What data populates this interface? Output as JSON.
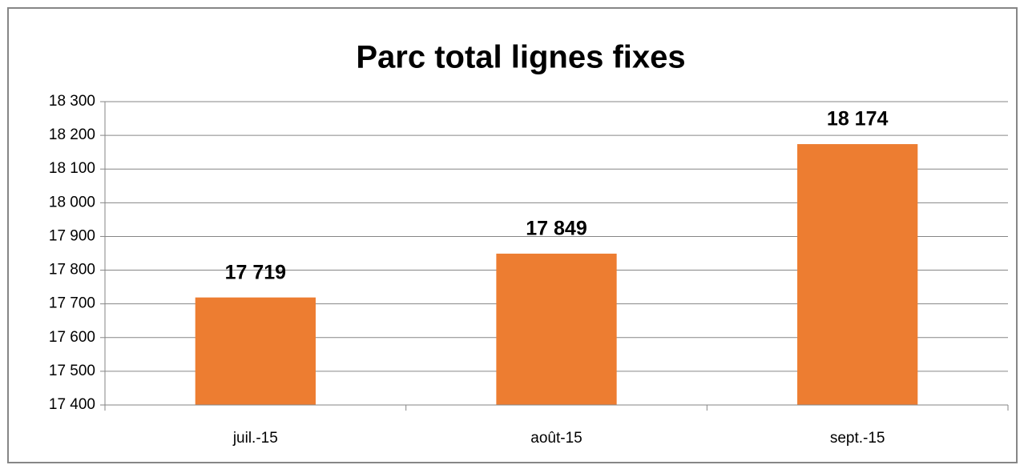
{
  "chart_data": {
    "type": "bar",
    "title": "Parc total lignes fixes",
    "categories": [
      "juil.-15",
      "août-15",
      "sept.-15"
    ],
    "values": [
      17719,
      17849,
      18174
    ],
    "value_labels": [
      "17 719",
      "17 849",
      "18 174"
    ],
    "color": "#ed7d31",
    "ylim": [
      17400,
      18300
    ],
    "yticks": [
      {
        "value": 17400,
        "label": "17 400"
      },
      {
        "value": 17500,
        "label": "17 500"
      },
      {
        "value": 17600,
        "label": "17 600"
      },
      {
        "value": 17700,
        "label": "17 700"
      },
      {
        "value": 17800,
        "label": "17 800"
      },
      {
        "value": 17900,
        "label": "17 900"
      },
      {
        "value": 18000,
        "label": "18 000"
      },
      {
        "value": 18100,
        "label": "18 100"
      },
      {
        "value": 18200,
        "label": "18 200"
      },
      {
        "value": 18300,
        "label": "18 300"
      }
    ],
    "grid": true
  }
}
